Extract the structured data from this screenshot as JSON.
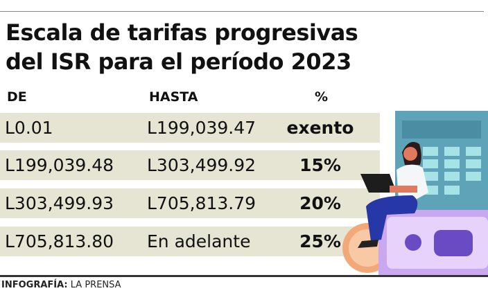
{
  "title": {
    "line1": "Escala de tarifas progresivas",
    "line2": "del ISR para el período 2023"
  },
  "table": {
    "headers": [
      "DE",
      "HASTA",
      "%"
    ],
    "rows": [
      [
        "L0.01",
        "L199,039.47",
        "exento"
      ],
      [
        "L199,039.48",
        "L303,499.92",
        "15%"
      ],
      [
        "L303,499.93",
        "L705,813.79",
        "20%"
      ],
      [
        "L705,813.80",
        "En adelante",
        "25%"
      ]
    ]
  },
  "footer": {
    "label": "INFOGRAFÍA:",
    "source": "LA PRENSA"
  },
  "colors": {
    "row_bg": "#e6e5d4",
    "calculator": "#5fa3b8",
    "money": "#c9a8f0",
    "coin": "#f2a878"
  }
}
